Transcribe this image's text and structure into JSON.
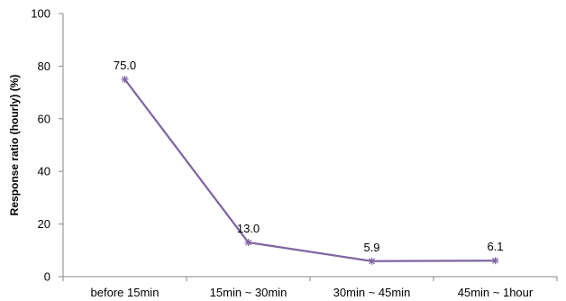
{
  "chart_data": {
    "type": "line",
    "title": "",
    "xlabel": "",
    "ylabel": "Response ratio (hourly) (%)",
    "categories": [
      "before 15min",
      "15min ~ 30min",
      "30min ~ 45min",
      "45min ~ 1hour"
    ],
    "series": [
      {
        "values": [
          75.0,
          13.0,
          5.9,
          6.1
        ],
        "labels": [
          "75.0",
          "13.0",
          "5.9",
          "6.1"
        ],
        "color": "#8064A2",
        "marker": "star"
      }
    ],
    "ylim": [
      0,
      100
    ],
    "yticks": [
      0,
      20,
      40,
      60,
      80,
      100
    ],
    "grid": false,
    "legend": "none"
  }
}
